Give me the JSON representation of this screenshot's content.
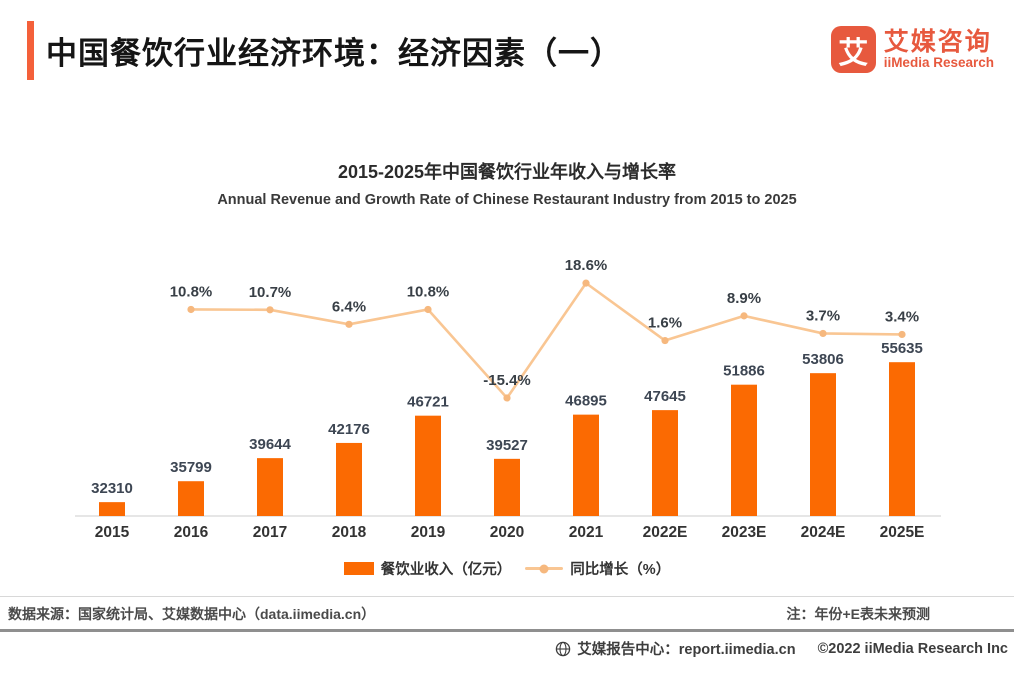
{
  "header": {
    "title": "中国餐饮行业经济环境：经济因素（一）",
    "logo": {
      "glyph": "艾",
      "brand_cn": "艾媒咨询",
      "brand_en": "iiMedia Research"
    }
  },
  "chart_data": {
    "type": "bar",
    "title": "2015-2025年中国餐饮行业年收入与增长率",
    "subtitle": "Annual Revenue and Growth Rate of Chinese Restaurant Industry from 2015 to 2025",
    "categories": [
      "2015",
      "2016",
      "2017",
      "2018",
      "2019",
      "2020",
      "2021",
      "2022E",
      "2023E",
      "2024E",
      "2025E"
    ],
    "series": [
      {
        "name": "餐饮业收入（亿元）",
        "type": "bar",
        "values": [
          32310,
          35799,
          39644,
          42176,
          46721,
          39527,
          46895,
          47645,
          51886,
          53806,
          55635
        ]
      },
      {
        "name": "同比增长（%）",
        "type": "line",
        "values": [
          null,
          10.8,
          10.7,
          6.4,
          10.8,
          -15.4,
          18.6,
          1.6,
          8.9,
          3.7,
          3.4
        ]
      }
    ],
    "bar_axis": {
      "min": 30000,
      "max": 57500
    },
    "line_axis": {
      "min": -20,
      "max": 25
    },
    "grid": false,
    "legend_position": "bottom",
    "colors": {
      "bar": "#fb6a02",
      "line": "#f9c693",
      "point": "#f6b87e",
      "value_label": "#3d4653",
      "pct_label": "#383f46",
      "axis_line": "#dddddd",
      "tick_label": "#333333"
    }
  },
  "legend": {
    "bar_label": "餐饮业收入（亿元）",
    "line_label": "同比增长（%）"
  },
  "footer": {
    "source": "数据来源：国家统计局、艾媒数据中心（data.iimedia.cn）",
    "note": "注：年份+E表未来预测",
    "report_center": "艾媒报告中心：report.iimedia.cn",
    "copyright": "©2022  iiMedia Research Inc"
  }
}
